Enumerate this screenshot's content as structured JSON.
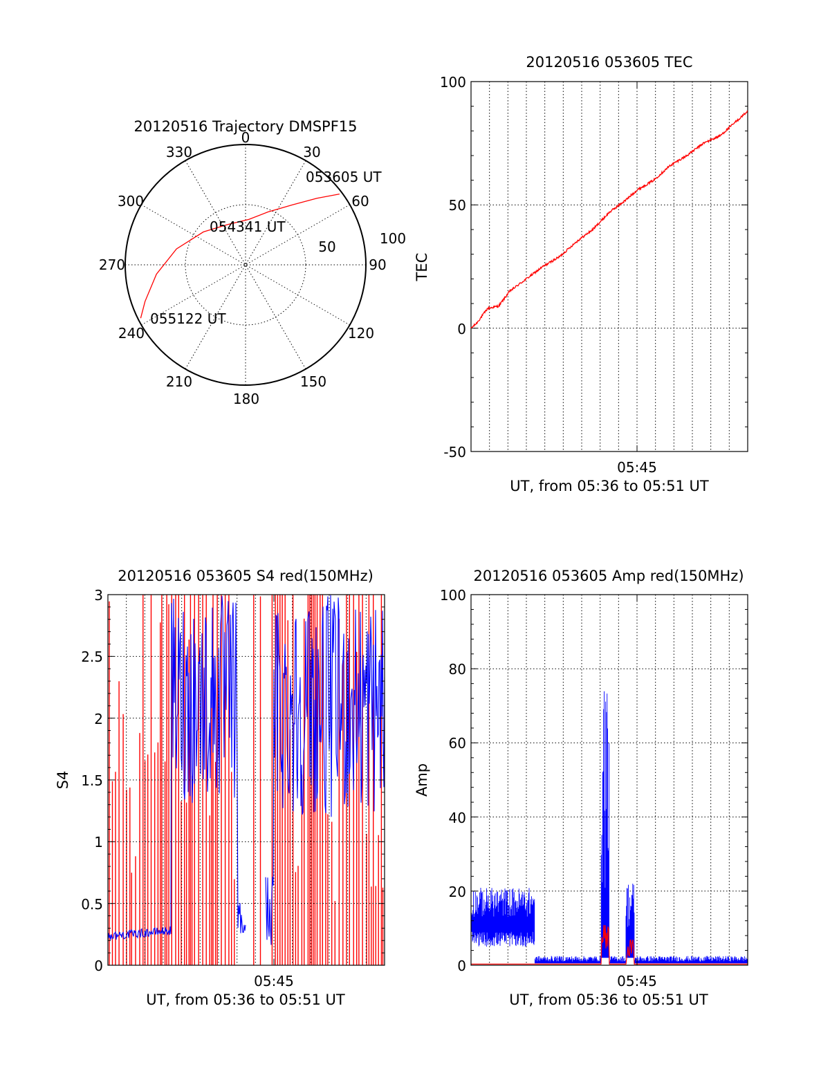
{
  "chart_data": [
    {
      "id": "polar",
      "type": "scatter",
      "subtype": "polar-trajectory",
      "title": "20120516 Trajectory DMSPF15",
      "azimuth_labels": [
        "0",
        "30",
        "60",
        "90",
        "120",
        "150",
        "180",
        "210",
        "240",
        "270",
        "300",
        "330"
      ],
      "radial_labels": [
        "50",
        "100"
      ],
      "series_color": "#ff0000",
      "trajectory": [
        {
          "az": 53,
          "el": 2
        },
        {
          "az": 47,
          "el": 17
        },
        {
          "az": 38,
          "el": 33
        },
        {
          "az": 23,
          "el": 47
        },
        {
          "az": 4,
          "el": 56
        },
        {
          "az": 336,
          "el": 57
        },
        {
          "az": 308,
          "el": 50
        },
        {
          "az": 283,
          "el": 37
        },
        {
          "az": 264,
          "el": 23
        },
        {
          "az": 250,
          "el": 10
        },
        {
          "az": 243,
          "el": 2
        }
      ],
      "annotations": [
        {
          "text": "053605 UT"
        },
        {
          "text": "054341 UT"
        },
        {
          "text": "055122 UT"
        }
      ]
    },
    {
      "id": "tec",
      "type": "line",
      "title": "20120516 053605 TEC",
      "xlabel": "UT, from 05:36 to 05:51 UT",
      "ylabel": "TEC",
      "xlim": [
        5.6,
        5.85
      ],
      "ylim": [
        -50,
        100
      ],
      "yticks": [
        "100",
        "50",
        "0",
        "-50"
      ],
      "xtick_label": "05:45",
      "series": [
        {
          "color": "#ff0000",
          "x": [
            5.6,
            5.605,
            5.615,
            5.625,
            5.635,
            5.65,
            5.665,
            5.68,
            5.695,
            5.71,
            5.725,
            5.74,
            5.75,
            5.765,
            5.78,
            5.795,
            5.81,
            5.825,
            5.835,
            5.85
          ],
          "y": [
            0,
            2,
            8,
            9,
            15,
            20,
            25,
            29,
            35,
            40,
            47,
            52,
            56,
            60,
            66,
            70,
            75,
            78,
            82,
            88
          ]
        }
      ]
    },
    {
      "id": "s4",
      "type": "line",
      "title": "20120516 053605 S4 red(150MHz)",
      "xlabel": "UT, from 05:36 to 05:51 UT",
      "ylabel": "S4",
      "xlim": [
        5.6,
        5.85
      ],
      "ylim": [
        0,
        3
      ],
      "yticks": [
        "3",
        "2.5",
        "2",
        "1.5",
        "1",
        "0.5",
        "0"
      ],
      "xtick_label": "05:45",
      "series": [
        {
          "color": "#ff0000"
        },
        {
          "color": "#0000ff"
        }
      ]
    },
    {
      "id": "amp",
      "type": "line",
      "title": "20120516 053605 Amp red(150MHz)",
      "xlabel": "UT, from 05:36 to 05:51 UT",
      "ylabel": "Amp",
      "xlim": [
        5.6,
        5.85
      ],
      "ylim": [
        0,
        100
      ],
      "yticks": [
        "100",
        "80",
        "60",
        "40",
        "20",
        "0"
      ],
      "xtick_label": "05:45",
      "series": [
        {
          "color": "#0000ff"
        },
        {
          "color": "#ff0000"
        }
      ]
    }
  ]
}
